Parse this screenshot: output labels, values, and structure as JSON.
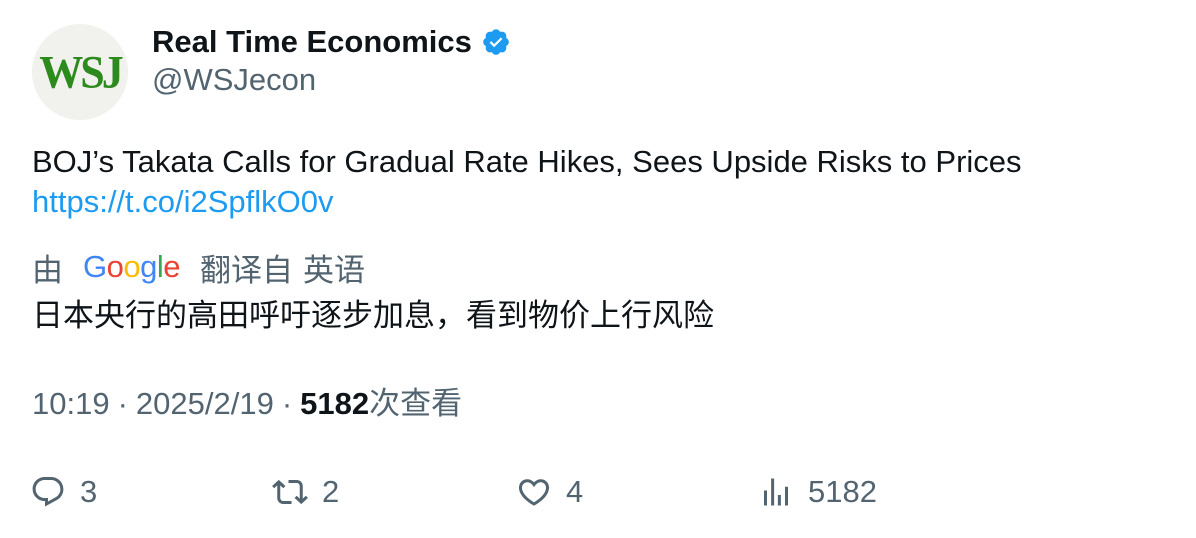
{
  "account": {
    "avatar_text": "WSJ",
    "display_name": "Real Time Economics",
    "handle": "@WSJecon",
    "verified_icon": "verified-badge-icon"
  },
  "tweet": {
    "text": "BOJ’s Takata Calls for Gradual Rate Hikes, Sees Upside Risks to Prices",
    "link": "https://t.co/i2SpflkO0v"
  },
  "translation": {
    "prefix": "由",
    "google_letters": [
      "G",
      "o",
      "o",
      "g",
      "l",
      "e"
    ],
    "translated_from": "翻译自",
    "source_language": "英语",
    "text": "日本央行的高田呼吁逐步加息，看到物价上行风险"
  },
  "meta": {
    "time": "10:19",
    "separator": "·",
    "date": "2025/2/19",
    "views_count": "5182",
    "views_label": "次查看"
  },
  "actions": {
    "reply_count": "3",
    "retweet_count": "2",
    "like_count": "4",
    "views_count": "5182"
  },
  "colors": {
    "link": "#1d9bf0",
    "secondary_text": "#536471",
    "primary_text": "#0f1419",
    "verified": "#1d9bf0",
    "wsj_logo": "#2d8a1c"
  }
}
